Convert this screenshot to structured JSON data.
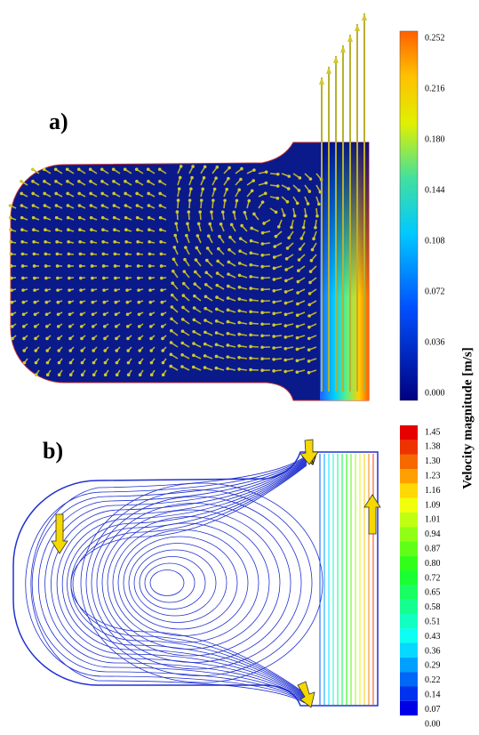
{
  "panels": [
    {
      "label": "a)",
      "colorbar": {
        "ticks": [
          "0.252",
          "0.216",
          "0.180",
          "0.144",
          "0.108",
          "0.072",
          "0.036",
          "0.000"
        ]
      }
    },
    {
      "label": "b)",
      "colorbar": {
        "ticks": [
          "1.45",
          "1.38",
          "1.30",
          "1.23",
          "1.16",
          "1.09",
          "1.01",
          "0.94",
          "0.87",
          "0.80",
          "0.72",
          "0.65",
          "0.58",
          "0.51",
          "0.43",
          "0.36",
          "0.29",
          "0.22",
          "0.14",
          "0.07",
          "0.00"
        ]
      }
    }
  ],
  "colorbar_title": "Velocity magnitude [m/s]"
}
